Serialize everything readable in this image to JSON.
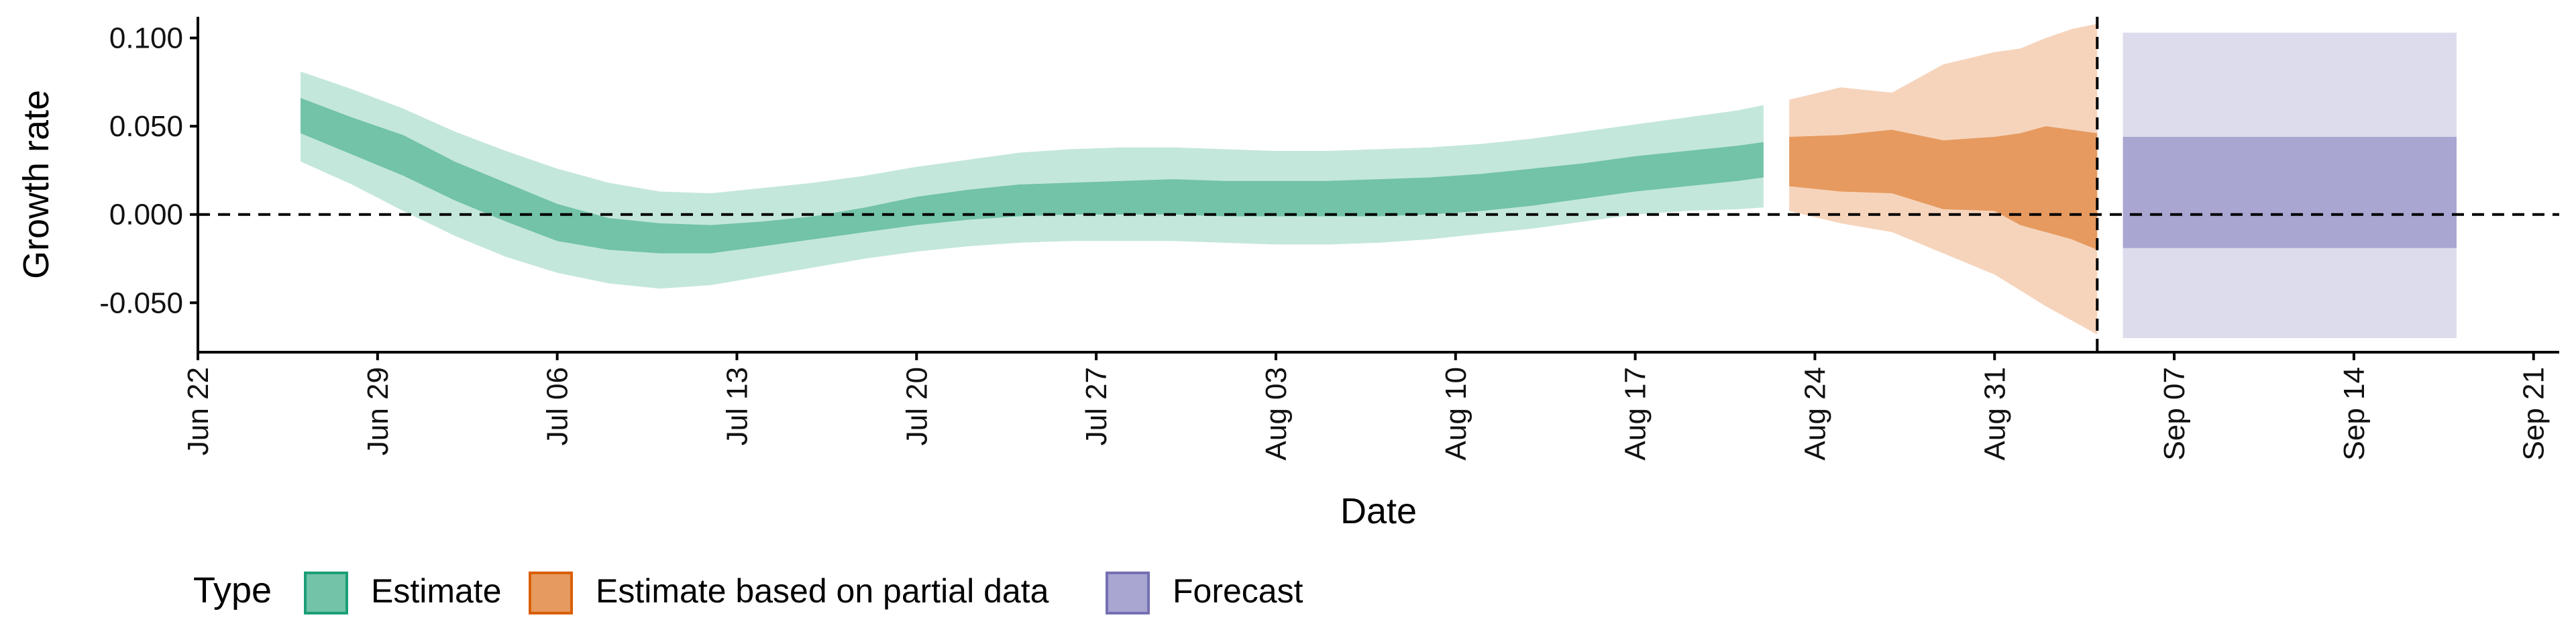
{
  "chart_data": {
    "type": "area",
    "xlabel": "Date",
    "ylabel": "Growth rate",
    "x_ticks": [
      "Jun 22",
      "Jun 29",
      "Jul 06",
      "Jul 13",
      "Jul 20",
      "Jul 27",
      "Aug 03",
      "Aug 10",
      "Aug 17",
      "Aug 24",
      "Aug 31",
      "Sep 07",
      "Sep 14",
      "Sep 21"
    ],
    "y_ticks": [
      "0.100",
      "0.050",
      "0.000",
      "-0.050"
    ],
    "xlim": [
      "2020-06-22",
      "2020-09-22"
    ],
    "ylim": [
      -0.078,
      0.112
    ],
    "reference_lines": [
      {
        "axis": "y",
        "value": 0.0,
        "style": "dashed"
      },
      {
        "axis": "x",
        "value": "2020-09-04",
        "style": "dashed"
      }
    ],
    "legend": {
      "title": "Type",
      "position": "bottom",
      "entries": [
        "Estimate",
        "Estimate based on partial data",
        "Forecast"
      ]
    },
    "series": [
      {
        "name": "Estimate",
        "color_inner": "#72c3a7",
        "color_outer": "#c4e7db",
        "x": [
          "2020-06-26",
          "2020-06-28",
          "2020-06-30",
          "2020-07-02",
          "2020-07-04",
          "2020-07-06",
          "2020-07-08",
          "2020-07-10",
          "2020-07-12",
          "2020-07-14",
          "2020-07-16",
          "2020-07-18",
          "2020-07-20",
          "2020-07-22",
          "2020-07-24",
          "2020-07-26",
          "2020-07-28",
          "2020-07-30",
          "2020-08-01",
          "2020-08-03",
          "2020-08-05",
          "2020-08-07",
          "2020-08-09",
          "2020-08-11",
          "2020-08-13",
          "2020-08-15",
          "2020-08-17",
          "2020-08-19",
          "2020-08-21",
          "2020-08-22"
        ],
        "upper90": [
          0.081,
          0.071,
          0.06,
          0.047,
          0.036,
          0.026,
          0.018,
          0.013,
          0.012,
          0.015,
          0.018,
          0.022,
          0.027,
          0.031,
          0.035,
          0.037,
          0.038,
          0.038,
          0.037,
          0.036,
          0.036,
          0.037,
          0.038,
          0.04,
          0.043,
          0.047,
          0.051,
          0.055,
          0.059,
          0.062
        ],
        "upper50": [
          0.066,
          0.055,
          0.045,
          0.03,
          0.018,
          0.006,
          -0.002,
          -0.005,
          -0.006,
          -0.004,
          -0.001,
          0.004,
          0.01,
          0.014,
          0.017,
          0.018,
          0.019,
          0.02,
          0.019,
          0.019,
          0.019,
          0.02,
          0.021,
          0.023,
          0.026,
          0.029,
          0.033,
          0.036,
          0.039,
          0.041
        ],
        "lower50": [
          0.046,
          0.034,
          0.022,
          0.008,
          -0.004,
          -0.015,
          -0.02,
          -0.022,
          -0.022,
          -0.018,
          -0.014,
          -0.01,
          -0.006,
          -0.003,
          -0.001,
          0.0,
          0.0,
          0.0,
          -0.001,
          -0.001,
          -0.001,
          -0.001,
          0.0,
          0.002,
          0.005,
          0.009,
          0.013,
          0.016,
          0.019,
          0.021
        ],
        "lower90": [
          0.03,
          0.017,
          0.002,
          -0.012,
          -0.024,
          -0.033,
          -0.039,
          -0.042,
          -0.04,
          -0.035,
          -0.03,
          -0.025,
          -0.021,
          -0.018,
          -0.016,
          -0.015,
          -0.015,
          -0.015,
          -0.016,
          -0.017,
          -0.017,
          -0.016,
          -0.014,
          -0.011,
          -0.008,
          -0.004,
          0.0,
          0.002,
          0.003,
          0.004
        ]
      },
      {
        "name": "Estimate based on partial data",
        "color_inner": "#e69a5f",
        "color_outer": "#f6d4bc",
        "x": [
          "2020-08-23",
          "2020-08-25",
          "2020-08-27",
          "2020-08-29",
          "2020-08-31",
          "2020-09-01",
          "2020-09-02",
          "2020-09-03",
          "2020-09-04"
        ],
        "upper90": [
          0.065,
          0.072,
          0.069,
          0.085,
          0.092,
          0.094,
          0.1,
          0.105,
          0.108
        ],
        "upper50": [
          0.044,
          0.045,
          0.048,
          0.042,
          0.044,
          0.046,
          0.05,
          0.048,
          0.046
        ],
        "lower50": [
          0.016,
          0.013,
          0.012,
          0.003,
          0.002,
          -0.006,
          -0.01,
          -0.014,
          -0.02
        ],
        "lower90": [
          0.002,
          -0.005,
          -0.01,
          -0.022,
          -0.034,
          -0.043,
          -0.052,
          -0.06,
          -0.068
        ]
      },
      {
        "name": "Forecast",
        "color_inner": "#a9a6d2",
        "color_outer": "#dcdcec",
        "x": [
          "2020-09-05",
          "2020-09-18"
        ],
        "upper90": [
          0.103,
          0.103
        ],
        "upper50": [
          0.044,
          0.044
        ],
        "lower50": [
          -0.019,
          -0.019
        ],
        "lower90": [
          -0.07,
          -0.07
        ]
      }
    ]
  }
}
